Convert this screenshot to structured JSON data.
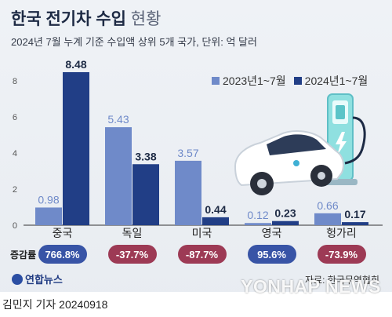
{
  "header": {
    "title_main": "한국 전기차 수입",
    "title_light": "현황",
    "subtitle": "2024년 7월 누계 기준 수입액 상위 5개 국가, 단위: 억 달러"
  },
  "colors": {
    "series_2023": "#6f8ac9",
    "series_2024": "#213e86",
    "badge_up": "#3854a6",
    "badge_down": "#9d3a55"
  },
  "chart_data": {
    "type": "bar",
    "categories": [
      "중국",
      "독일",
      "미국",
      "영국",
      "헝가리"
    ],
    "series": [
      {
        "name": "2023년1~7월",
        "values": [
          0.98,
          5.43,
          3.57,
          0.12,
          0.66
        ]
      },
      {
        "name": "2024년1~7월",
        "values": [
          8.48,
          3.38,
          0.44,
          0.23,
          0.17
        ]
      }
    ],
    "yticks": [
      "0",
      "2",
      "4",
      "6",
      "8"
    ],
    "ylim": [
      0,
      9
    ],
    "grid": false,
    "legend": "top-right"
  },
  "growth": {
    "label": "증감률",
    "items": [
      {
        "value": "766.8%",
        "trend": "up"
      },
      {
        "value": "-37.7%",
        "trend": "down"
      },
      {
        "value": "-87.7%",
        "trend": "down"
      },
      {
        "value": "95.6%",
        "trend": "up"
      },
      {
        "value": "-73.9%",
        "trend": "down"
      }
    ]
  },
  "footer": {
    "logo": "연합뉴스",
    "source": "자료: 한국무역협회",
    "byline": "김민지 기자  20240918",
    "watermark": "YONHAP NEWS"
  },
  "illustration": {
    "icons": [
      "ev-charging-station-icon",
      "electric-car-icon"
    ]
  }
}
